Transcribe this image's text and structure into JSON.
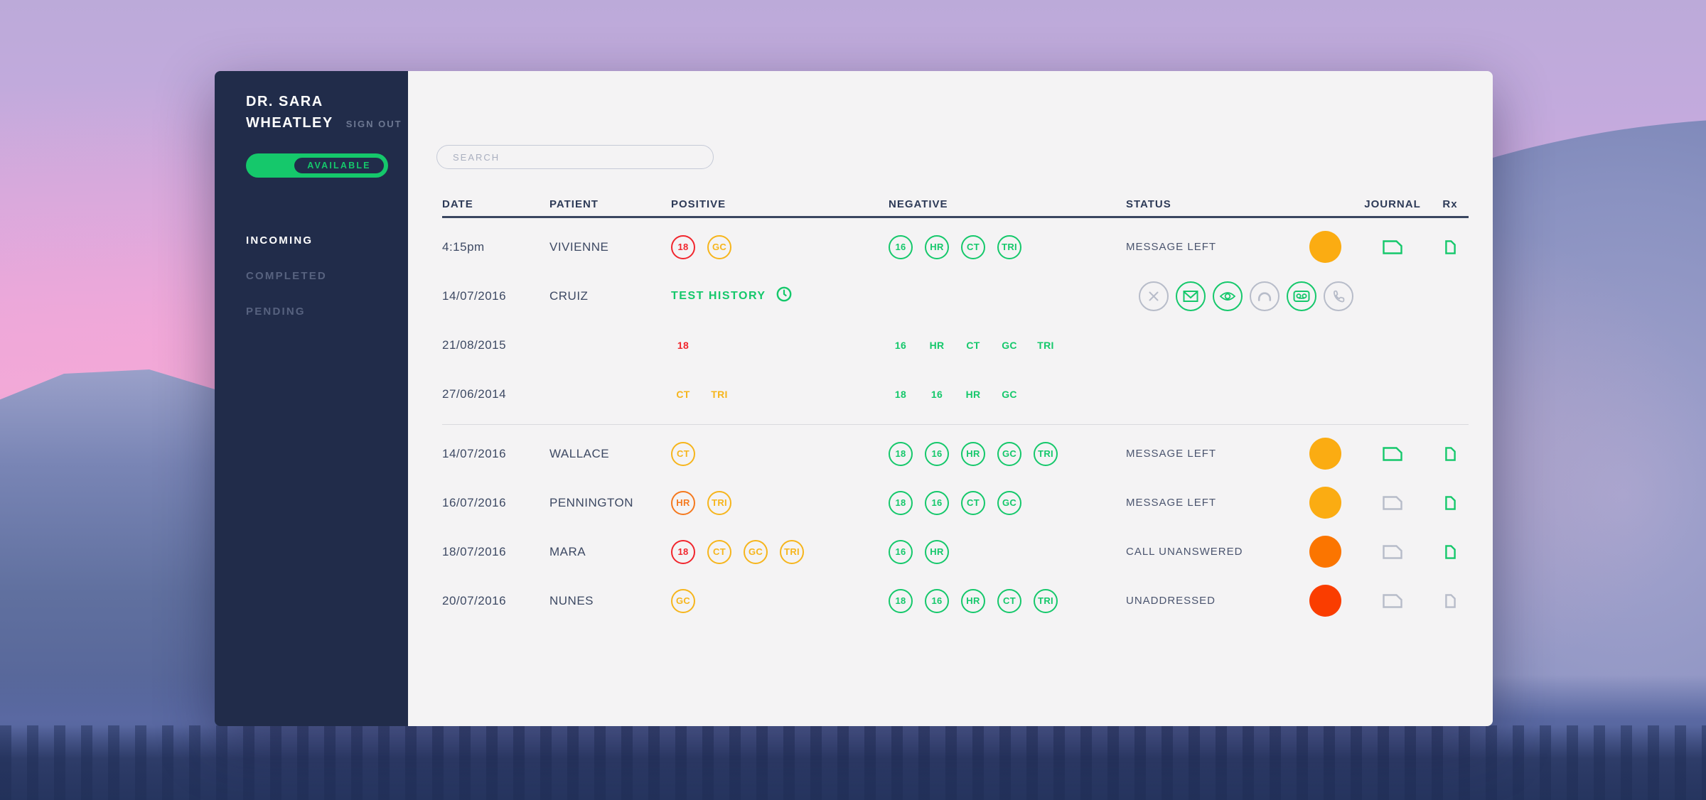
{
  "colors": {
    "green": "#15c86b",
    "red": "#f1262d",
    "amber": "#f6b51c",
    "orange": "#f5791e",
    "dot_amber": "#fbac12",
    "dot_orange": "#fb7500",
    "dot_red": "#fa3d00",
    "gray_icon": "#b7bcc9",
    "sidebar_bg": "#212c4a",
    "card_bg": "#f4f3f4"
  },
  "sidebar": {
    "doctor_name_line1": "DR. SARA",
    "doctor_name_line2": "WHEATLEY",
    "sign_out_label": "SIGN OUT",
    "availability_label": "AVAILABLE",
    "nav": [
      {
        "label": "INCOMING",
        "active": true
      },
      {
        "label": "COMPLETED",
        "active": false
      },
      {
        "label": "PENDING",
        "active": false
      }
    ]
  },
  "search": {
    "placeholder": "SEARCH"
  },
  "table": {
    "headers": [
      "DATE",
      "PATIENT",
      "POSITIVE",
      "NEGATIVE",
      "STATUS",
      "JOURNAL",
      "Rx"
    ],
    "rows": [
      {
        "type": "patient",
        "date": "4:15pm",
        "patient": "VIVIENNE",
        "positive": [
          {
            "label": "18",
            "color": "red"
          },
          {
            "label": "GC",
            "color": "amber"
          }
        ],
        "negative": [
          "16",
          "HR",
          "CT",
          "TRI"
        ],
        "status": "MESSAGE LEFT",
        "dot": "amber",
        "journal": "green",
        "rx": "green"
      },
      {
        "type": "patient-expanded",
        "date": "14/07/2016",
        "patient": "CRUIZ",
        "link_label": "TEST HISTORY",
        "link_icon": "clock-icon",
        "actions": [
          {
            "icon": "close-icon",
            "color": "gray"
          },
          {
            "icon": "mail-icon",
            "color": "green"
          },
          {
            "icon": "eye-icon",
            "color": "green"
          },
          {
            "icon": "handset-icon",
            "color": "gray"
          },
          {
            "icon": "voicemail-icon",
            "color": "green"
          },
          {
            "icon": "phone-icon",
            "color": "gray"
          }
        ]
      },
      {
        "type": "history",
        "date": "21/08/2015",
        "positive": [
          {
            "label": "18",
            "color": "red"
          }
        ],
        "negative": [
          "16",
          "HR",
          "CT",
          "GC",
          "TRI"
        ]
      },
      {
        "type": "history",
        "date": "27/06/2014",
        "positive": [
          {
            "label": "CT",
            "color": "amber"
          },
          {
            "label": "TRI",
            "color": "amber"
          }
        ],
        "negative": [
          "18",
          "16",
          "HR",
          "GC"
        ]
      },
      {
        "type": "divider"
      },
      {
        "type": "patient",
        "date": "14/07/2016",
        "patient": "WALLACE",
        "positive": [
          {
            "label": "CT",
            "color": "amber"
          }
        ],
        "negative": [
          "18",
          "16",
          "HR",
          "GC",
          "TRI"
        ],
        "status": "MESSAGE LEFT",
        "dot": "amber",
        "journal": "green",
        "rx": "green"
      },
      {
        "type": "patient",
        "date": "16/07/2016",
        "patient": "PENNINGTON",
        "positive": [
          {
            "label": "HR",
            "color": "orange"
          },
          {
            "label": "TRI",
            "color": "amber"
          }
        ],
        "negative": [
          "18",
          "16",
          "CT",
          "GC"
        ],
        "status": "MESSAGE LEFT",
        "dot": "amber",
        "journal": "gray",
        "rx": "green"
      },
      {
        "type": "patient",
        "date": "18/07/2016",
        "patient": "MARA",
        "positive": [
          {
            "label": "18",
            "color": "red"
          },
          {
            "label": "CT",
            "color": "amber"
          },
          {
            "label": "GC",
            "color": "amber"
          },
          {
            "label": "TRI",
            "color": "amber"
          }
        ],
        "negative": [
          "16",
          "HR"
        ],
        "status": "CALL UNANSWERED",
        "dot": "orange",
        "journal": "gray",
        "rx": "green"
      },
      {
        "type": "patient",
        "date": "20/07/2016",
        "patient": "NUNES",
        "positive": [
          {
            "label": "GC",
            "color": "amber"
          }
        ],
        "negative": [
          "18",
          "16",
          "HR",
          "CT",
          "TRI"
        ],
        "status": "UNADDRESSED",
        "dot": "red",
        "journal": "gray",
        "rx": "gray"
      }
    ]
  }
}
